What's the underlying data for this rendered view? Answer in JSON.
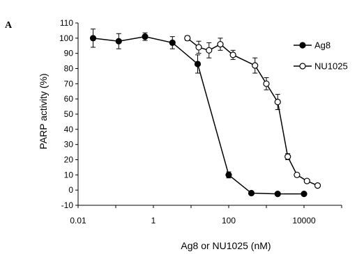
{
  "panel_label": "A",
  "chart_data": {
    "type": "line",
    "title": "",
    "xlabel": "Ag8 or NU1025 (nM)",
    "ylabel": "PARP activity (%)",
    "xscale": "log",
    "xlim": [
      0.01,
      100000
    ],
    "ylim": [
      -10,
      110
    ],
    "x_ticks": [
      0.01,
      1,
      100,
      10000
    ],
    "x_tick_labels": [
      "0.01",
      "1",
      "100",
      "10000"
    ],
    "y_ticks": [
      -10,
      0,
      10,
      20,
      30,
      40,
      50,
      60,
      70,
      80,
      90,
      100,
      110
    ],
    "y_tick_labels": [
      "-10",
      "0",
      "10",
      "20",
      "30",
      "40",
      "50",
      "60",
      "70",
      "80",
      "90",
      "100",
      "110"
    ],
    "legend_position": "top-right",
    "series": [
      {
        "name": "Ag8",
        "marker": "filled-circle",
        "color": "#000000",
        "x": [
          0.025,
          0.12,
          0.6,
          3.2,
          15,
          100,
          400,
          2000,
          10000
        ],
        "y": [
          100,
          98,
          101,
          97,
          83,
          10,
          -2,
          -2.5,
          -2.5
        ],
        "err": [
          6,
          5,
          2.5,
          4,
          6,
          2,
          0,
          0,
          0
        ]
      },
      {
        "name": "NU1025",
        "marker": "open-circle",
        "color": "#000000",
        "x": [
          8,
          16,
          30,
          60,
          130,
          500,
          1000,
          2000,
          3700,
          6500,
          12000,
          23000
        ],
        "y": [
          100,
          94,
          92,
          96,
          89,
          82,
          70,
          58,
          22,
          10,
          6,
          3
        ],
        "err": [
          1.5,
          4,
          5,
          4,
          3,
          5,
          4,
          5,
          2,
          0,
          0,
          0
        ]
      }
    ]
  }
}
